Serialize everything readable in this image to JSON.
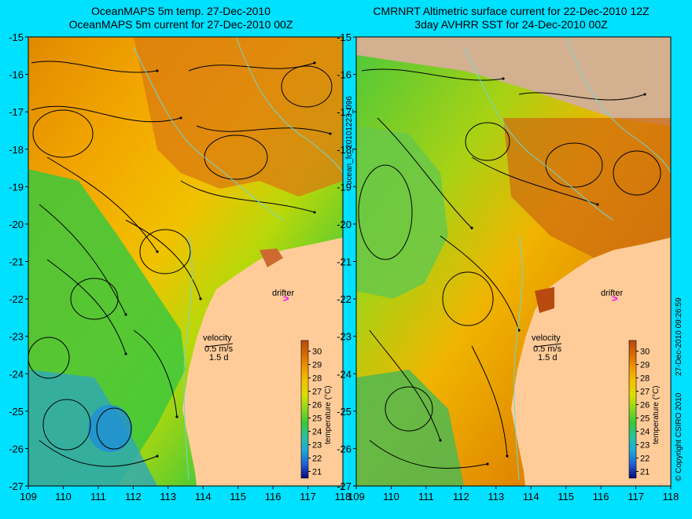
{
  "left_panel": {
    "title_line1": "OceanMAPS 5m temp. 27-Dec-2010",
    "title_line2": "OceanMAPS 5m current for 27-Dec-2010 00Z"
  },
  "right_panel": {
    "title_line1": "CMRNRT Altimetric surface current for 22-Dec-2010 12Z",
    "title_line2": "3day AVHRR SST for 24-Dec-2010 00Z"
  },
  "x_ticks": [
    "109",
    "110",
    "111",
    "112",
    "113",
    "114",
    "115",
    "116",
    "117",
    "118"
  ],
  "y_ticks": [
    "-15",
    "-16",
    "-17",
    "-18",
    "-19",
    "-20",
    "-21",
    "-22",
    "-23",
    "-24",
    "-25",
    "-26",
    "-27"
  ],
  "colorbar": {
    "label": "temperature (°C)",
    "ticks": [
      "30",
      "29",
      "28",
      "27",
      "26",
      "25",
      "24",
      "23",
      "22",
      "21"
    ],
    "range": [
      20.5,
      30.8
    ],
    "colors": [
      "#0a0a7a",
      "#1f5fd6",
      "#1ea8d8",
      "#2bc0a0",
      "#36c83a",
      "#8ad61e",
      "#d8e000",
      "#f3c200",
      "#ee9a00",
      "#d86a00",
      "#b84a10"
    ]
  },
  "velocity_legend": {
    "label": "velocity",
    "speed": "0.5 m/s",
    "duration": "1.5 d"
  },
  "drifter_label": "drifter",
  "side_labels": {
    "file": "ocean_fc_20101223_096",
    "copyright": "© Copyright CSIRO 2010",
    "timestamp": "27-Dec-2010 09:26:59"
  },
  "colors": {
    "background": "#00e0ff",
    "land": "#ffcc99",
    "drifter": "#ff00ff",
    "coastline_contour": "#6fd6d6"
  }
}
